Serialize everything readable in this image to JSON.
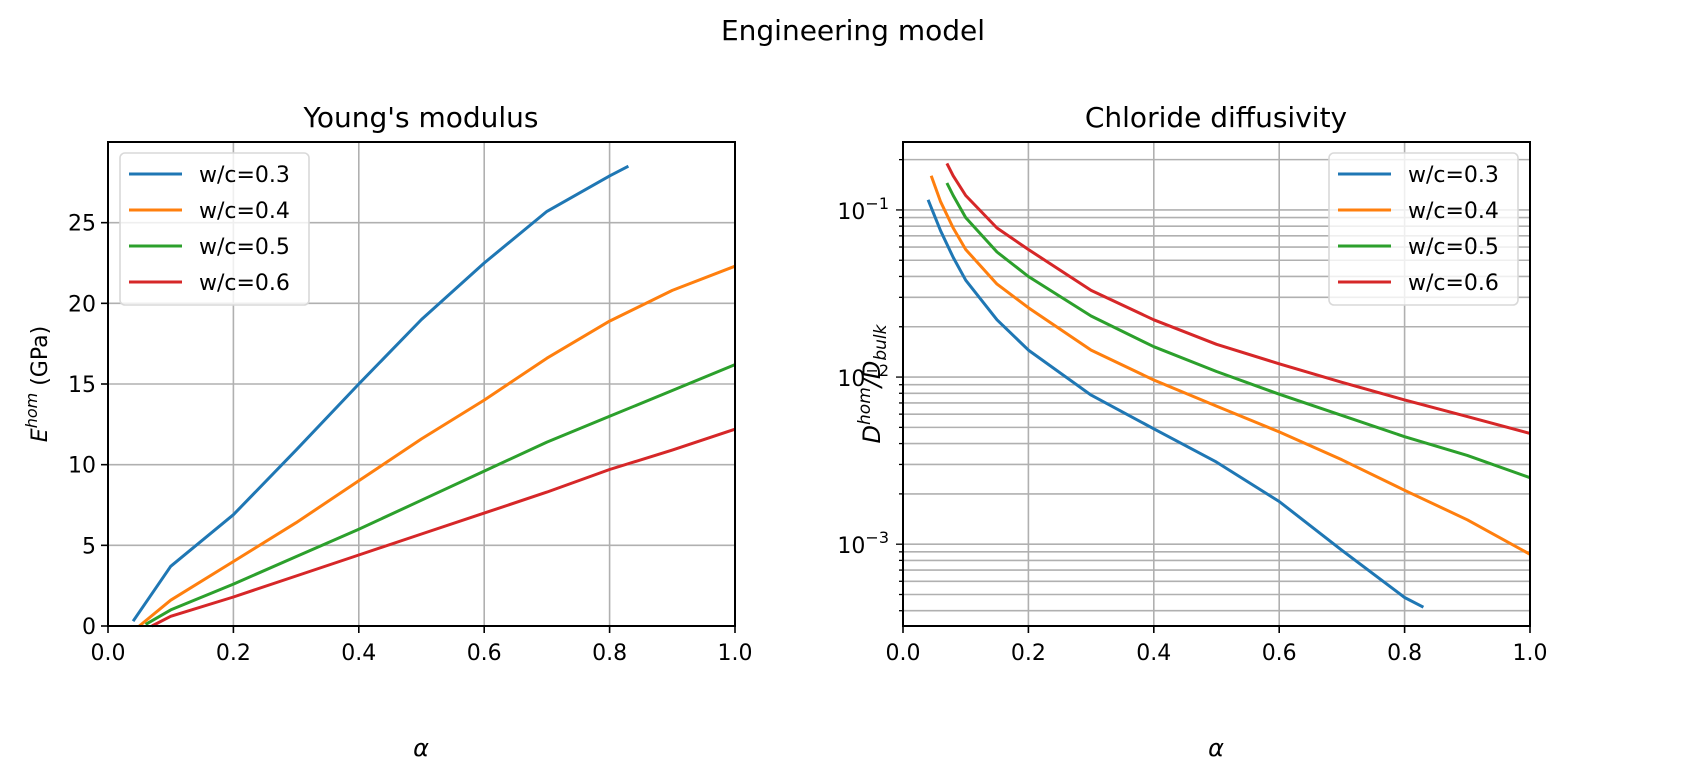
{
  "figure": {
    "suptitle": "Engineering model"
  },
  "chart_data": [
    {
      "type": "line",
      "title": "Young's modulus",
      "xlabel": "α",
      "ylabel": "E^hom (GPa)",
      "ylabel_base": "E",
      "ylabel_sup": "hom",
      "ylabel_rest": " (GPa)",
      "xlim": [
        0.0,
        1.0
      ],
      "ylim": [
        0,
        30
      ],
      "yscale": "linear",
      "grid": true,
      "legend": "upper left",
      "xticks": [
        0.0,
        0.2,
        0.4,
        0.6,
        0.8,
        1.0
      ],
      "xtick_labels": [
        "0.0",
        "0.2",
        "0.4",
        "0.6",
        "0.8",
        "1.0"
      ],
      "yticks": [
        0,
        5,
        10,
        15,
        20,
        25
      ],
      "ytick_labels": [
        "0",
        "5",
        "10",
        "15",
        "20",
        "25"
      ],
      "series": [
        {
          "name": "w/c=0.3",
          "color": "#1f77b4",
          "x": [
            0.04,
            0.1,
            0.2,
            0.3,
            0.4,
            0.5,
            0.6,
            0.7,
            0.8,
            0.83
          ],
          "y": [
            0.3,
            3.7,
            6.9,
            10.9,
            15.0,
            19.0,
            22.5,
            25.7,
            27.9,
            28.5
          ]
        },
        {
          "name": "w/c=0.4",
          "color": "#ff7f0e",
          "x": [
            0.05,
            0.1,
            0.2,
            0.3,
            0.4,
            0.5,
            0.6,
            0.7,
            0.8,
            0.9,
            1.0
          ],
          "y": [
            0.0,
            1.6,
            4.0,
            6.4,
            9.0,
            11.6,
            14.0,
            16.6,
            18.9,
            20.8,
            22.3
          ]
        },
        {
          "name": "w/c=0.5",
          "color": "#2ca02c",
          "x": [
            0.06,
            0.1,
            0.2,
            0.3,
            0.4,
            0.5,
            0.6,
            0.7,
            0.8,
            0.9,
            1.0
          ],
          "y": [
            0.1,
            1.0,
            2.6,
            4.3,
            6.0,
            7.8,
            9.6,
            11.4,
            13.0,
            14.6,
            16.2
          ]
        },
        {
          "name": "w/c=0.6",
          "color": "#d62728",
          "x": [
            0.07,
            0.1,
            0.2,
            0.3,
            0.4,
            0.5,
            0.6,
            0.7,
            0.8,
            0.9,
            1.0
          ],
          "y": [
            0.0,
            0.6,
            1.8,
            3.1,
            4.4,
            5.7,
            7.0,
            8.3,
            9.7,
            10.9,
            12.2
          ]
        }
      ]
    },
    {
      "type": "line",
      "title": "Chloride diffusivity",
      "xlabel": "α",
      "ylabel": "D^hom/D_bulk",
      "ylabel_base": "D",
      "ylabel_sup": "hom",
      "ylabel_mid": "/D",
      "ylabel_sub": "bulk",
      "xlim": [
        0.0,
        1.0
      ],
      "ylim": [
        0.000324,
        0.255
      ],
      "yscale": "log",
      "grid": true,
      "grid_minor_y": true,
      "legend": "upper right",
      "xticks": [
        0.0,
        0.2,
        0.4,
        0.6,
        0.8,
        1.0
      ],
      "xtick_labels": [
        "0.0",
        "0.2",
        "0.4",
        "0.6",
        "0.8",
        "1.0"
      ],
      "yticks": [
        0.1,
        0.01,
        0.001
      ],
      "ytick_labels": [
        {
          "base": "10",
          "exp": "−1"
        },
        {
          "base": "10",
          "exp": "−2"
        },
        {
          "base": "10",
          "exp": "−3"
        }
      ],
      "series": [
        {
          "name": "w/c=0.3",
          "color": "#1f77b4",
          "x": [
            0.04,
            0.06,
            0.08,
            0.1,
            0.15,
            0.2,
            0.3,
            0.4,
            0.5,
            0.6,
            0.7,
            0.8,
            0.83
          ],
          "y": [
            0.115,
            0.075,
            0.052,
            0.038,
            0.022,
            0.0145,
            0.0078,
            0.0049,
            0.0031,
            0.0018,
            0.00092,
            0.00048,
            0.00042
          ]
        },
        {
          "name": "w/c=0.4",
          "color": "#ff7f0e",
          "x": [
            0.045,
            0.06,
            0.08,
            0.1,
            0.15,
            0.2,
            0.3,
            0.4,
            0.5,
            0.6,
            0.7,
            0.8,
            0.9,
            1.0
          ],
          "y": [
            0.16,
            0.112,
            0.078,
            0.058,
            0.036,
            0.026,
            0.0145,
            0.0096,
            0.0067,
            0.0047,
            0.0032,
            0.0021,
            0.0014,
            0.00087
          ]
        },
        {
          "name": "w/c=0.5",
          "color": "#2ca02c",
          "x": [
            0.07,
            0.08,
            0.1,
            0.15,
            0.2,
            0.3,
            0.4,
            0.5,
            0.6,
            0.7,
            0.8,
            0.9,
            1.0
          ],
          "y": [
            0.145,
            0.122,
            0.09,
            0.056,
            0.04,
            0.0232,
            0.0152,
            0.0108,
            0.0079,
            0.0059,
            0.0044,
            0.0034,
            0.0025
          ]
        },
        {
          "name": "w/c=0.6",
          "color": "#d62728",
          "x": [
            0.07,
            0.08,
            0.1,
            0.15,
            0.2,
            0.3,
            0.4,
            0.5,
            0.6,
            0.7,
            0.8,
            0.9,
            1.0
          ],
          "y": [
            0.19,
            0.16,
            0.122,
            0.078,
            0.058,
            0.033,
            0.022,
            0.0157,
            0.012,
            0.0093,
            0.0073,
            0.0058,
            0.0046
          ]
        }
      ]
    }
  ]
}
